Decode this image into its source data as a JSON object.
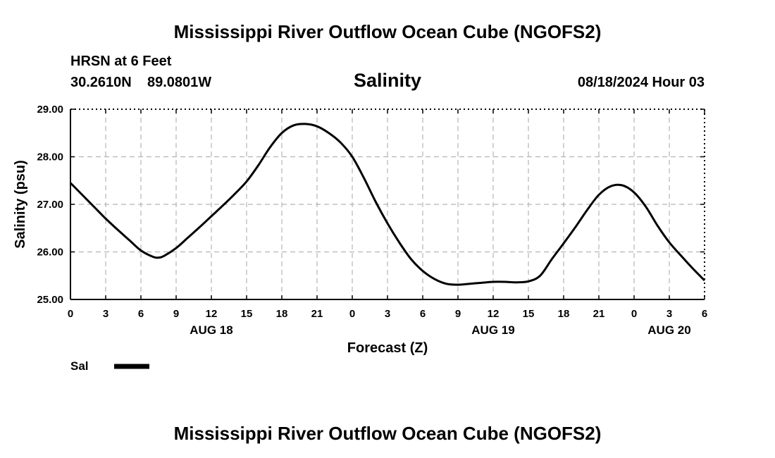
{
  "page": {
    "title_top": "Mississippi River Outflow Ocean Cube (NGOFS2)",
    "title_bottom": "Mississippi River Outflow Ocean Cube (NGOFS2)",
    "station_line": "HRSN at 6 Feet",
    "coords_lat": "30.2610N",
    "coords_lon": "89.0801W",
    "datetime": "08/18/2024 Hour 03"
  },
  "chart_data": {
    "type": "line",
    "title": "Salinity",
    "xlabel": "Forecast (Z)",
    "ylabel": "Salinity (psu)",
    "ylim": [
      25,
      29
    ],
    "xlim": [
      0,
      54
    ],
    "grid": true,
    "y_ticks": [
      "25.00",
      "26.00",
      "27.00",
      "28.00",
      "29.00"
    ],
    "x_tick_hours": [
      0,
      3,
      6,
      9,
      12,
      15,
      18,
      21,
      24,
      27,
      30,
      33,
      36,
      39,
      42,
      45,
      48,
      51,
      54
    ],
    "x_tick_labels": [
      "0",
      "3",
      "6",
      "9",
      "12",
      "15",
      "18",
      "21",
      "0",
      "3",
      "6",
      "9",
      "12",
      "15",
      "18",
      "21",
      "0",
      "3",
      "6"
    ],
    "day_labels": [
      {
        "hour": 12,
        "label": "AUG 18"
      },
      {
        "hour": 36,
        "label": "AUG 19"
      },
      {
        "hour": 51,
        "label": "AUG 20"
      }
    ],
    "legend": [
      {
        "name": "Sal",
        "color": "#000000"
      }
    ],
    "series": [
      {
        "name": "Sal",
        "color": "#000000",
        "x": [
          0,
          1,
          2,
          3,
          4,
          5,
          6,
          7,
          7.5,
          8,
          9,
          10,
          11,
          12,
          13,
          14,
          15,
          16,
          17,
          18,
          19,
          20,
          21,
          22,
          23,
          24,
          25,
          26,
          27,
          28,
          29,
          30,
          31,
          32,
          33,
          34,
          35,
          36,
          37,
          38,
          39,
          40,
          41,
          42,
          43,
          44,
          45,
          46,
          47,
          48,
          49,
          50,
          51,
          52,
          53,
          54
        ],
        "y": [
          27.45,
          27.2,
          26.95,
          26.7,
          26.47,
          26.25,
          26.03,
          25.9,
          25.88,
          25.92,
          26.08,
          26.3,
          26.52,
          26.75,
          26.98,
          27.22,
          27.48,
          27.82,
          28.2,
          28.5,
          28.66,
          28.69,
          28.64,
          28.5,
          28.3,
          28.0,
          27.55,
          27.05,
          26.6,
          26.2,
          25.85,
          25.6,
          25.43,
          25.33,
          25.31,
          25.33,
          25.35,
          25.37,
          25.37,
          25.36,
          25.38,
          25.5,
          25.85,
          26.18,
          26.52,
          26.88,
          27.2,
          27.38,
          27.4,
          27.25,
          26.95,
          26.55,
          26.2,
          25.92,
          25.65,
          25.4
        ]
      }
    ]
  }
}
